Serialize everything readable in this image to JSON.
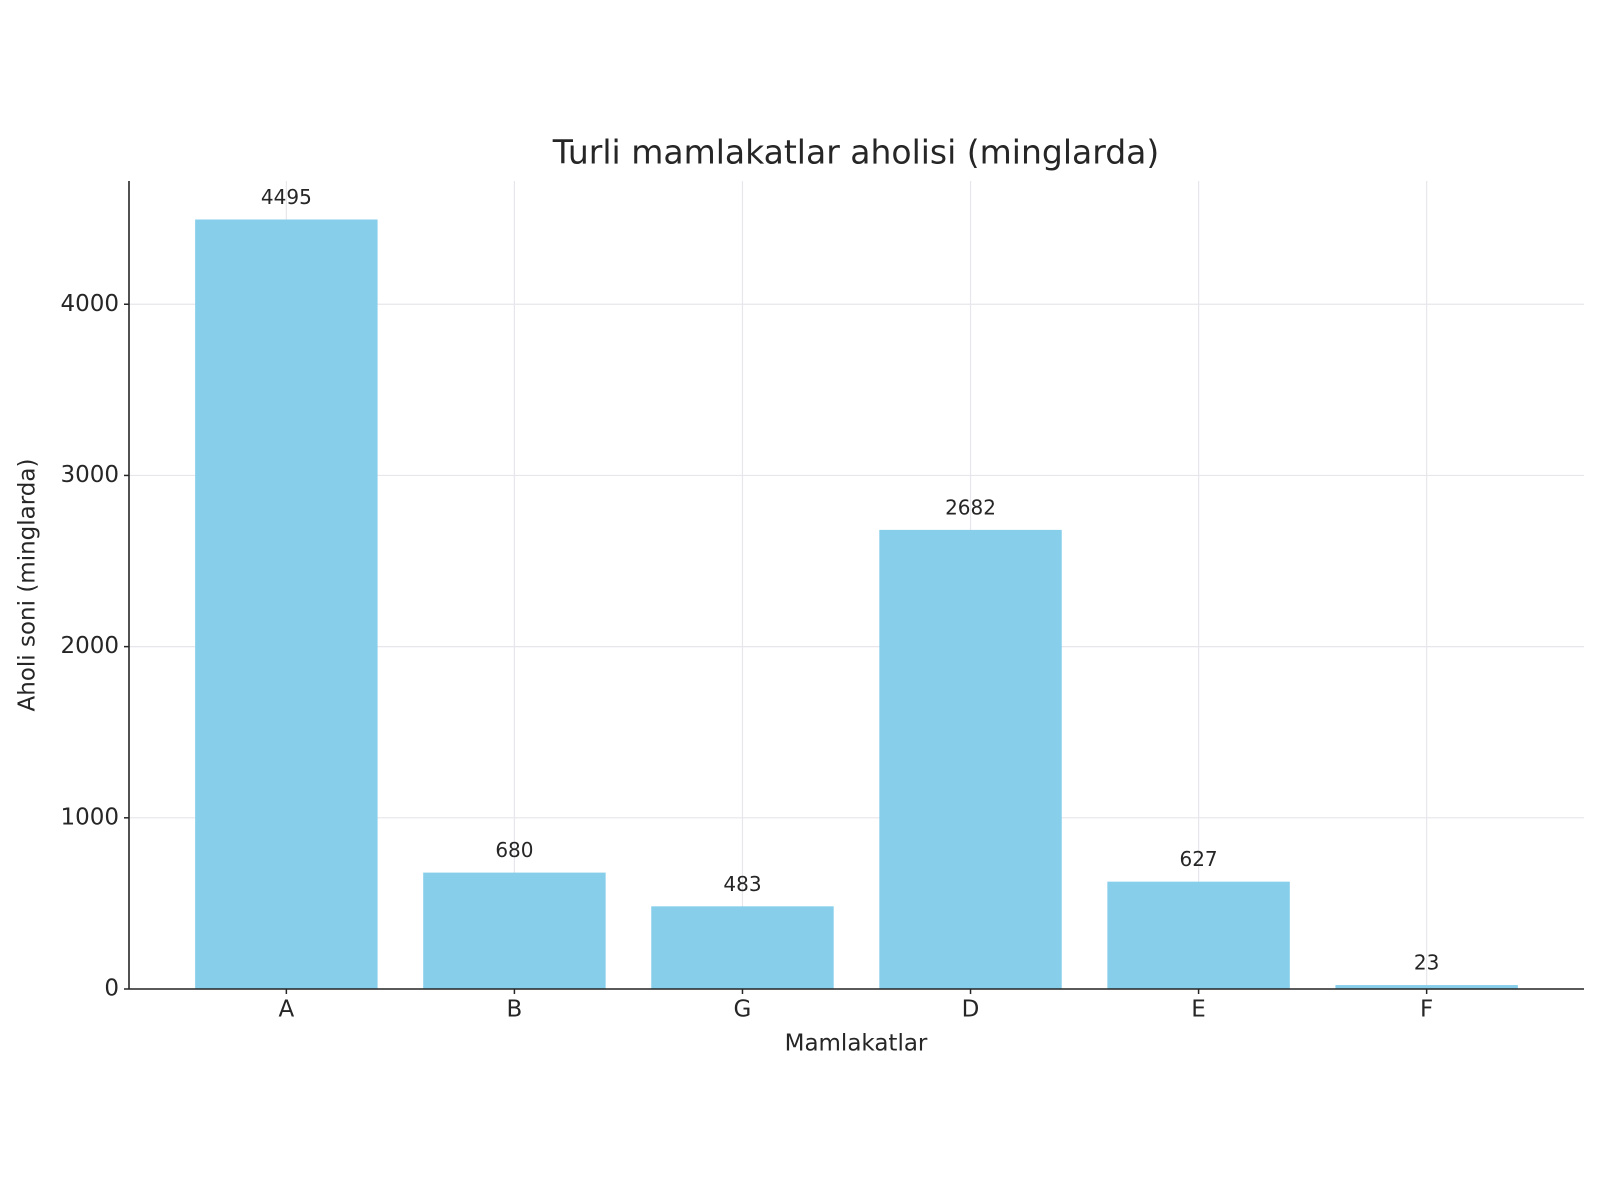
{
  "chart_data": {
    "type": "bar",
    "title": "Turli mamlakatlar aholisi (minglarda)",
    "x_label": "Mamlakatlar",
    "y_label": "Aholi soni (minglarda)",
    "categories": [
      "A",
      "B",
      "G",
      "D",
      "E",
      "F"
    ],
    "values": [
      4495,
      680,
      483,
      2682,
      627,
      23
    ],
    "color": "#87ceeb",
    "ylim": [
      0,
      4720
    ],
    "yticks": [
      0,
      1000,
      2000,
      3000,
      4000
    ],
    "grid": true
  }
}
